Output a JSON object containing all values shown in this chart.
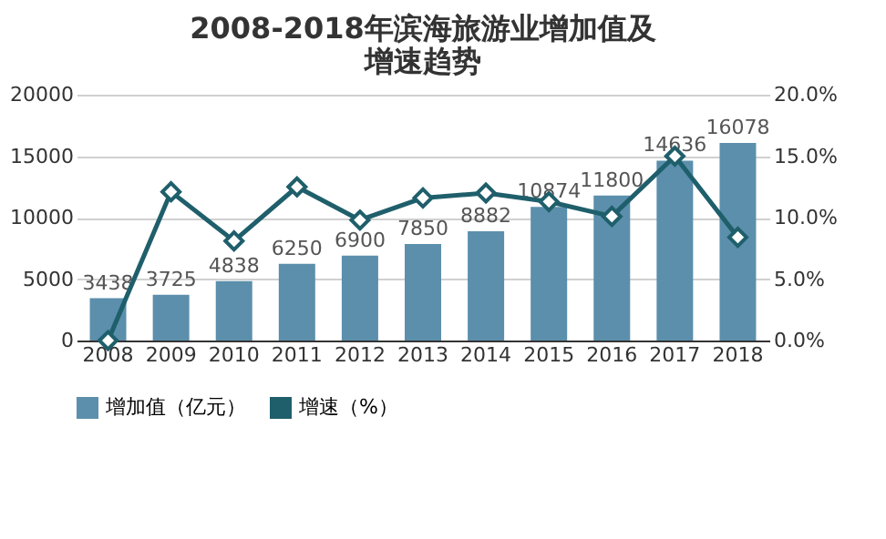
{
  "chart_data": {
    "type": "bar",
    "title": [
      "2008-2018年滨海旅游业增加值及",
      "增速趋势"
    ],
    "categories": [
      "2008",
      "2009",
      "2010",
      "2011",
      "2012",
      "2013",
      "2014",
      "2015",
      "2016",
      "2017",
      "2018"
    ],
    "series": [
      {
        "name": "增加值（亿元）",
        "color": "#5b8fac",
        "values": [
          3438,
          3725,
          4838,
          6250,
          6900,
          7850,
          8882,
          10874,
          11800,
          14636,
          16078
        ],
        "value_labels": [
          "3438",
          "3725",
          "4838",
          "6250",
          "6900",
          "7850",
          "8882",
          "10874",
          "11800",
          "14636",
          "16078"
        ]
      },
      {
        "name": "增速（%）",
        "type": "line",
        "axis": "y2",
        "color": "#1f5f6b",
        "marker": "diamond",
        "values": [
          0.0,
          12.1,
          8.1,
          12.5,
          9.8,
          11.6,
          12.0,
          11.3,
          10.1,
          15.0,
          8.4
        ]
      }
    ],
    "ylim": [
      0,
      20000
    ],
    "yticks": [
      0,
      5000,
      10000,
      15000,
      20000
    ],
    "y2lim": [
      0,
      20
    ],
    "y2ticks": [
      {
        "value": 0,
        "label": "0.0%"
      },
      {
        "value": 5,
        "label": "5.0%"
      },
      {
        "value": 10,
        "label": "10.0%"
      },
      {
        "value": 15,
        "label": "15.0%"
      },
      {
        "value": 20,
        "label": "20.0%"
      }
    ],
    "grid": "y",
    "legend": "bottom"
  }
}
